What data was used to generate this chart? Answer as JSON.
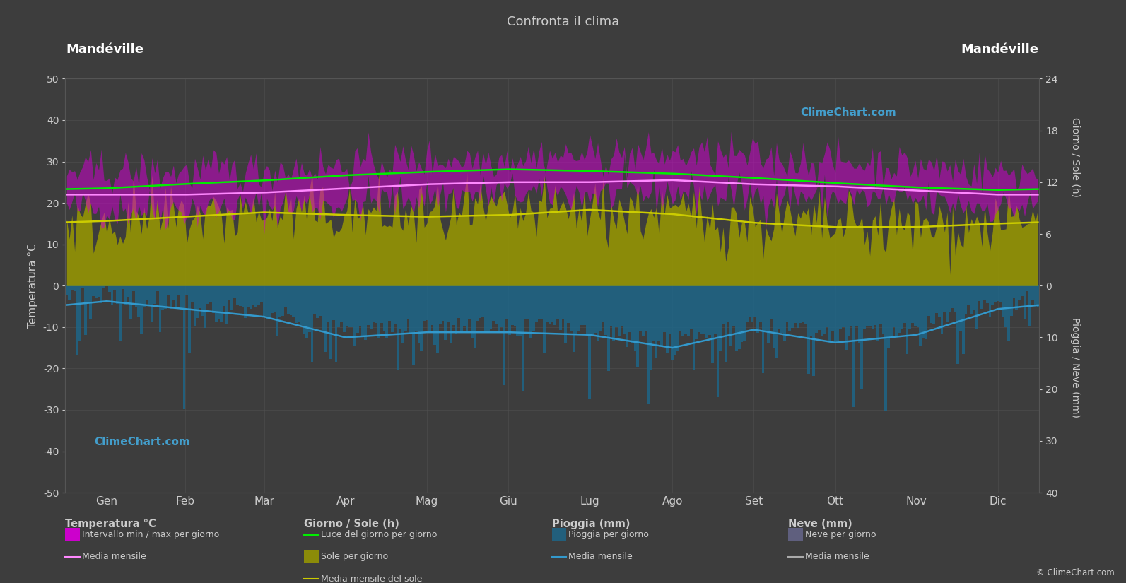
{
  "title": "Confronta il clima",
  "location": "Mandéville",
  "bg_color": "#3d3d3d",
  "plot_bg_color": "#3d3d3d",
  "grid_color": "#555555",
  "text_color": "#cccccc",
  "xlabel_months": [
    "Gen",
    "Feb",
    "Mar",
    "Apr",
    "Mag",
    "Giu",
    "Lug",
    "Ago",
    "Set",
    "Ott",
    "Nov",
    "Dic"
  ],
  "ylim_left": [
    -50,
    50
  ],
  "temp_min_monthly": [
    18.5,
    18.5,
    19.0,
    20.0,
    21.5,
    22.5,
    22.0,
    22.5,
    22.0,
    21.5,
    20.5,
    19.0
  ],
  "temp_max_monthly": [
    27.5,
    27.5,
    28.0,
    29.0,
    30.5,
    31.0,
    31.5,
    31.5,
    31.0,
    30.0,
    29.0,
    27.5
  ],
  "temp_mean_monthly": [
    22.0,
    22.0,
    22.5,
    23.5,
    24.5,
    25.0,
    25.0,
    25.5,
    24.5,
    24.0,
    23.0,
    22.0
  ],
  "daylight_monthly": [
    11.3,
    11.8,
    12.2,
    12.8,
    13.2,
    13.5,
    13.3,
    13.0,
    12.5,
    11.9,
    11.4,
    11.1
  ],
  "sunshine_hours_monthly": [
    7.5,
    8.0,
    8.5,
    8.2,
    8.0,
    8.2,
    8.8,
    8.3,
    7.3,
    6.8,
    6.8,
    7.2
  ],
  "rain_mean_mm_monthly": [
    3.0,
    4.5,
    6.0,
    10.0,
    9.0,
    9.0,
    9.5,
    12.0,
    8.5,
    11.0,
    9.5,
    4.5
  ],
  "rain_daily_noise": 3.0,
  "sunshine_daily_noise": 2.0,
  "temp_noise_min": 2.5,
  "temp_noise_max": 2.5,
  "colors": {
    "temp_band": "#cc00cc",
    "temp_band_alpha": 0.55,
    "temp_mean": "#ff88ff",
    "daylight_line": "#00ee00",
    "sunshine_fill": "#999900",
    "sunshine_fill_alpha": 0.85,
    "sunshine_mean": "#cccc00",
    "rain_fill": "#1e6688",
    "rain_fill_alpha": 0.85,
    "rain_mean": "#3399cc",
    "snow_fill": "#7777aa",
    "snow_fill_alpha": 0.6
  },
  "right_axis_sun_ticks": [
    0,
    6,
    12,
    18,
    24
  ],
  "right_axis_rain_ticks": [
    0,
    10,
    20,
    30,
    40
  ],
  "left_yticks": [
    -50,
    -40,
    -30,
    -20,
    -10,
    0,
    10,
    20,
    30,
    40,
    50
  ],
  "days_per_month": [
    31,
    28,
    31,
    30,
    31,
    30,
    31,
    31,
    30,
    31,
    30,
    31
  ]
}
